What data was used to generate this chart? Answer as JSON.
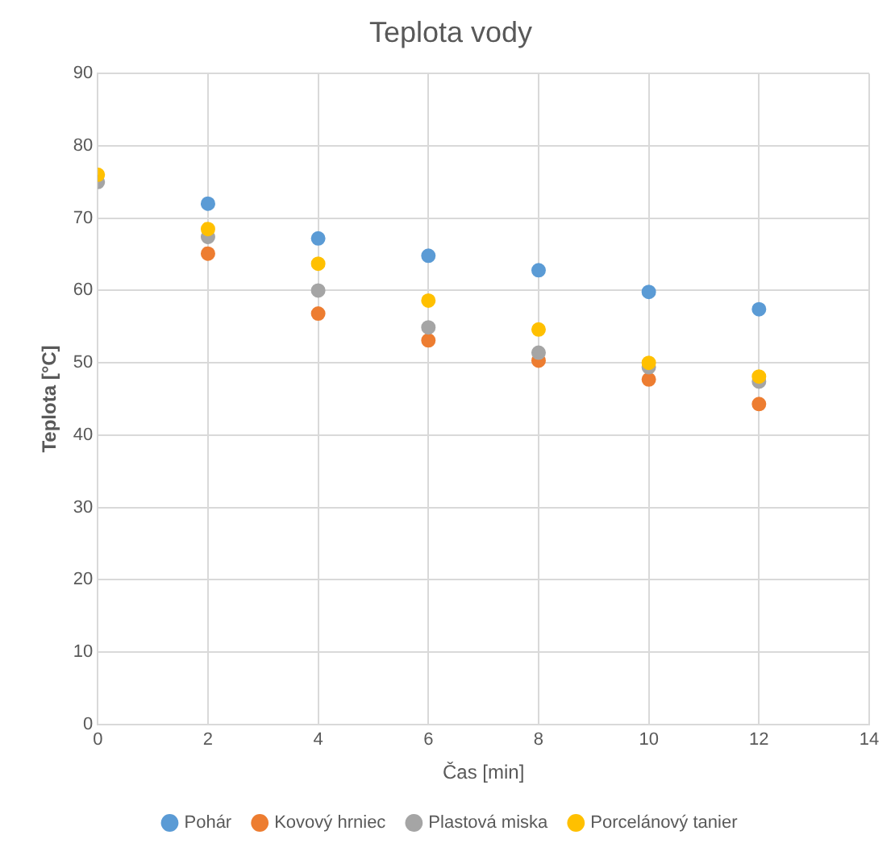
{
  "chart_data": {
    "type": "scatter",
    "title": "Teplota vody",
    "xlabel": "Čas [min]",
    "ylabel": "Teplota [°C]",
    "x": [
      0,
      2,
      4,
      6,
      8,
      10,
      12
    ],
    "series": [
      {
        "name": "Pohár",
        "color": "#5b9bd5",
        "values": [
          null,
          72,
          67.2,
          64.8,
          62.8,
          59.8,
          57.4
        ]
      },
      {
        "name": "Kovový hrniec",
        "color": "#ed7d31",
        "values": [
          null,
          65.1,
          56.8,
          53.1,
          50.3,
          47.7,
          44.3
        ]
      },
      {
        "name": "Plastová miska",
        "color": "#a5a5a5",
        "values": [
          75,
          67.4,
          60,
          54.9,
          51.4,
          49.4,
          47.4
        ]
      },
      {
        "name": "Porcelánový tanier",
        "color": "#ffc000",
        "values": [
          76,
          68.5,
          63.7,
          58.6,
          54.6,
          50,
          48.1
        ]
      }
    ],
    "xlim": [
      0,
      14
    ],
    "xticks": [
      0,
      2,
      4,
      6,
      8,
      10,
      12,
      14
    ],
    "ylim": [
      0,
      90
    ],
    "yticks": [
      0,
      10,
      20,
      30,
      40,
      50,
      60,
      70,
      80,
      90
    ],
    "grid": true,
    "legend": "bottom",
    "marker": "circle"
  }
}
